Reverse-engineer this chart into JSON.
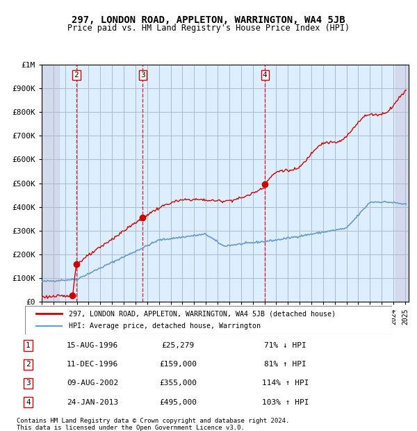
{
  "title": "297, LONDON ROAD, APPLETON, WARRINGTON, WA4 5JB",
  "subtitle": "Price paid vs. HM Land Registry's House Price Index (HPI)",
  "sale_dates": [
    "1996-08-15",
    "1996-12-11",
    "2002-08-09",
    "2013-01-24"
  ],
  "sale_prices": [
    25279,
    159000,
    355000,
    495000
  ],
  "sale_labels": [
    "1",
    "2",
    "3",
    "4"
  ],
  "sale_annotations": [
    {
      "num": "1",
      "date": "15-AUG-1996",
      "price": "£25,279",
      "pct": "71% ↓ HPI"
    },
    {
      "num": "2",
      "date": "11-DEC-1996",
      "price": "£159,000",
      "pct": "81% ↑ HPI"
    },
    {
      "num": "3",
      "date": "09-AUG-2002",
      "price": "£355,000",
      "pct": "114% ↑ HPI"
    },
    {
      "num": "4",
      "date": "24-JAN-2013",
      "price": "£495,000",
      "pct": "103% ↑ HPI"
    }
  ],
  "legend_line1": "297, LONDON ROAD, APPLETON, WARRINGTON, WA4 5JB (detached house)",
  "legend_line2": "HPI: Average price, detached house, Warrington",
  "footer1": "Contains HM Land Registry data © Crown copyright and database right 2024.",
  "footer2": "This data is licensed under the Open Government Licence v3.0.",
  "hpi_color": "#6699cc",
  "sale_line_color": "#cc0000",
  "sale_dot_color": "#cc0000",
  "vline_color": "#cc0000",
  "bg_plot_color": "#ddeeff",
  "bg_hatch_color": "#ccccdd",
  "grid_color": "#aabbcc",
  "ylim": [
    0,
    1000000
  ],
  "yticks": [
    0,
    100000,
    200000,
    300000,
    400000,
    500000,
    600000,
    700000,
    800000,
    900000,
    1000000
  ],
  "ytick_labels": [
    "£0",
    "£100K",
    "£200K",
    "£300K",
    "£400K",
    "£500K",
    "£600K",
    "£700K",
    "£800K",
    "£900K",
    "£1M"
  ]
}
